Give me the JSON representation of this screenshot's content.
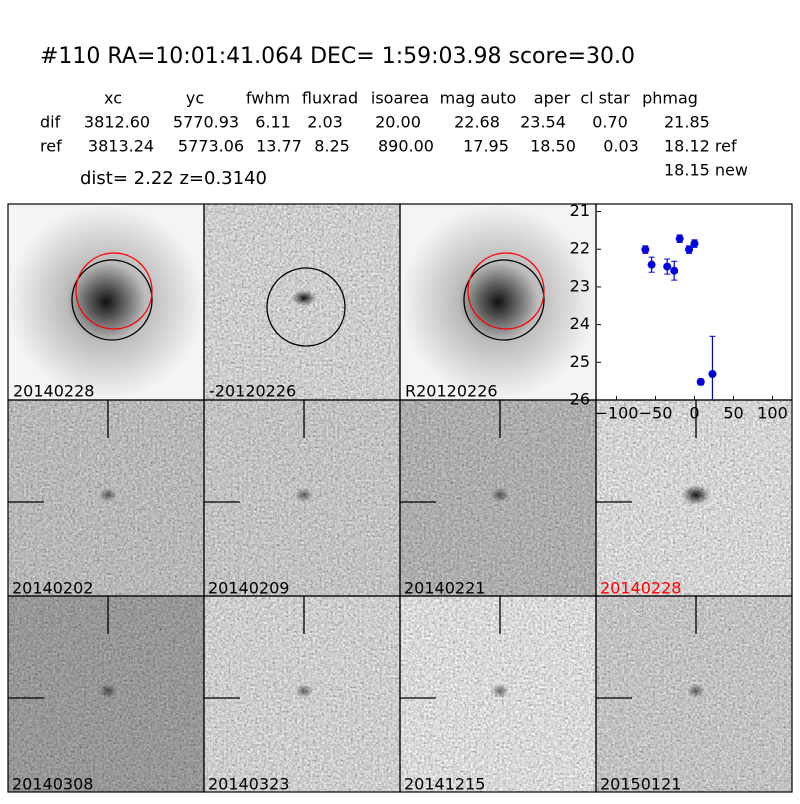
{
  "header": {
    "title": "#110   RA=10:01:41.064 DEC= 1:59:03.98       score=30.0",
    "dist": "dist=  2.22      z=0.3140",
    "extra": "18.15 new"
  },
  "table": {
    "columns": [
      "xc",
      "yc",
      "fwhm",
      "fluxrad",
      "isoarea",
      "mag auto",
      "aper",
      "cl star",
      "phmag"
    ],
    "rows": [
      [
        "dif",
        "3812.60",
        "5770.93",
        "6.11",
        "2.03",
        "20.00",
        "22.68",
        "23.54",
        "0.70",
        "21.85"
      ],
      [
        "ref",
        "3813.24",
        "5773.06",
        "13.77",
        "8.25",
        "890.00",
        "17.95",
        "18.50",
        "0.03",
        "18.12 ref"
      ]
    ]
  },
  "stamps": {
    "top": [
      "20140228",
      "-20120226",
      "R20120226"
    ],
    "epochs": [
      "20140202",
      "20140209",
      "20140221",
      "20140228",
      "20140308",
      "20140323",
      "20141215",
      "20150121"
    ]
  },
  "chart_data": {
    "type": "scatter",
    "x": [
      -63,
      -55,
      -35,
      -26,
      -19,
      -7,
      0,
      8,
      23
    ],
    "values": [
      22.01,
      22.41,
      22.46,
      22.57,
      21.72,
      22.01,
      21.85,
      25.52,
      25.31
    ],
    "errors": [
      0.1,
      0.2,
      0.2,
      0.25,
      0.1,
      0.1,
      0.1,
      0.08,
      1.0
    ],
    "color": "#0000dd",
    "xlim": [
      -125,
      125
    ],
    "ylim": [
      26,
      20.8
    ],
    "xticks": [
      {
        "value": -100,
        "label": "−100"
      },
      {
        "value": -50,
        "label": "−50"
      },
      0,
      50,
      100
    ],
    "yticks": [
      21,
      22,
      23,
      24,
      25,
      26
    ]
  }
}
